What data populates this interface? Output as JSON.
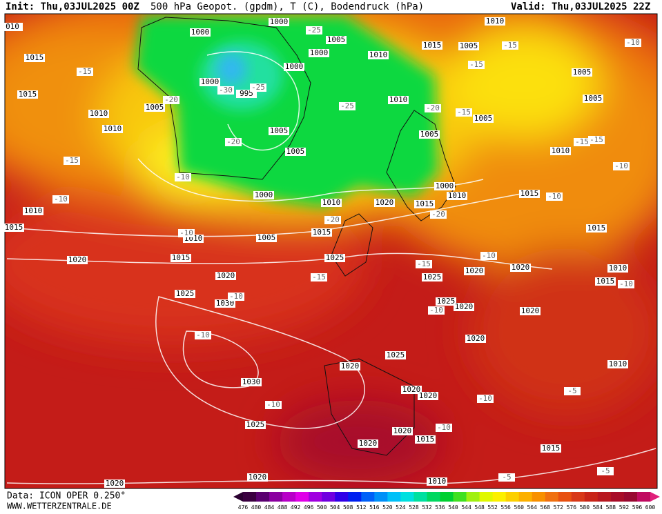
{
  "header": {
    "init": "Init: Thu,03JUL2025 00Z",
    "title": "500 hPa Geopot. (gpdm), T (C), Bodendruck (hPa)",
    "valid": "Valid: Thu,03JUL2025 22Z"
  },
  "footer": {
    "data": "Data: ICON OPER 0.250°",
    "site": "WWW.WETTERZENTRALE.DE"
  },
  "colorbar": {
    "labels": [
      "476",
      "480",
      "484",
      "488",
      "492",
      "496",
      "500",
      "504",
      "508",
      "512",
      "516",
      "520",
      "524",
      "528",
      "532",
      "536",
      "540",
      "544",
      "548",
      "552",
      "556",
      "560",
      "564",
      "568",
      "572",
      "576",
      "580",
      "584",
      "588",
      "592",
      "596",
      "600"
    ]
  },
  "isobar_labels": [
    "1000",
    "1000",
    "1005",
    "1000",
    "1000",
    "1010",
    "1015",
    "1005",
    "1010",
    "1005",
    "1005",
    "1010",
    "1005",
    "1005",
    "1000",
    "1010",
    "1015",
    "1020",
    "1010",
    "1000",
    "1005",
    "1015",
    "1010",
    "1015",
    "1020",
    "1020",
    "1025",
    "1030",
    "1025",
    "1025",
    "1020",
    "1020",
    "1015",
    "1010",
    "1015",
    "1010",
    "1015",
    "1025",
    "1020",
    "1020",
    "1020",
    "1025",
    "1020",
    "1030",
    "1025",
    "1020",
    "1020",
    "1020",
    "1015",
    "1020",
    "1015",
    "1010",
    "1020",
    "1020",
    "1010",
    "1010",
    "1015",
    "1010",
    "1010",
    "1015",
    "1015",
    "1005",
    "1000",
    "995",
    "1005",
    "1005",
    "010"
  ],
  "temperature_labels": [
    "-25",
    "-15",
    "-10",
    "-15",
    "-15",
    "-30",
    "-25",
    "-20",
    "-25",
    "-20",
    "-15",
    "-20",
    "-15",
    "-15",
    "-10",
    "-15",
    "-10",
    "-10",
    "-20",
    "-20",
    "-10",
    "-10",
    "-10",
    "-15",
    "-15",
    "-10",
    "-10",
    "-10",
    "-10",
    "-10",
    "-5",
    "-10",
    "-10",
    "-5",
    "-5"
  ]
}
